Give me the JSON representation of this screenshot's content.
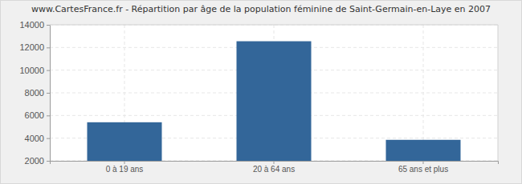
{
  "chart_data": {
    "type": "bar",
    "title": "www.CartesFrance.fr - Répartition par âge de la population féminine de Saint-Germain-en-Laye en 2007",
    "categories": [
      "0 à 19 ans",
      "20 à 64 ans",
      "65 ans et plus"
    ],
    "values": [
      5400,
      12550,
      3850
    ],
    "color": "#336699",
    "ylim": [
      2000,
      14000
    ],
    "yticks": [
      2000,
      4000,
      6000,
      8000,
      10000,
      12000,
      14000
    ],
    "grid": true
  }
}
